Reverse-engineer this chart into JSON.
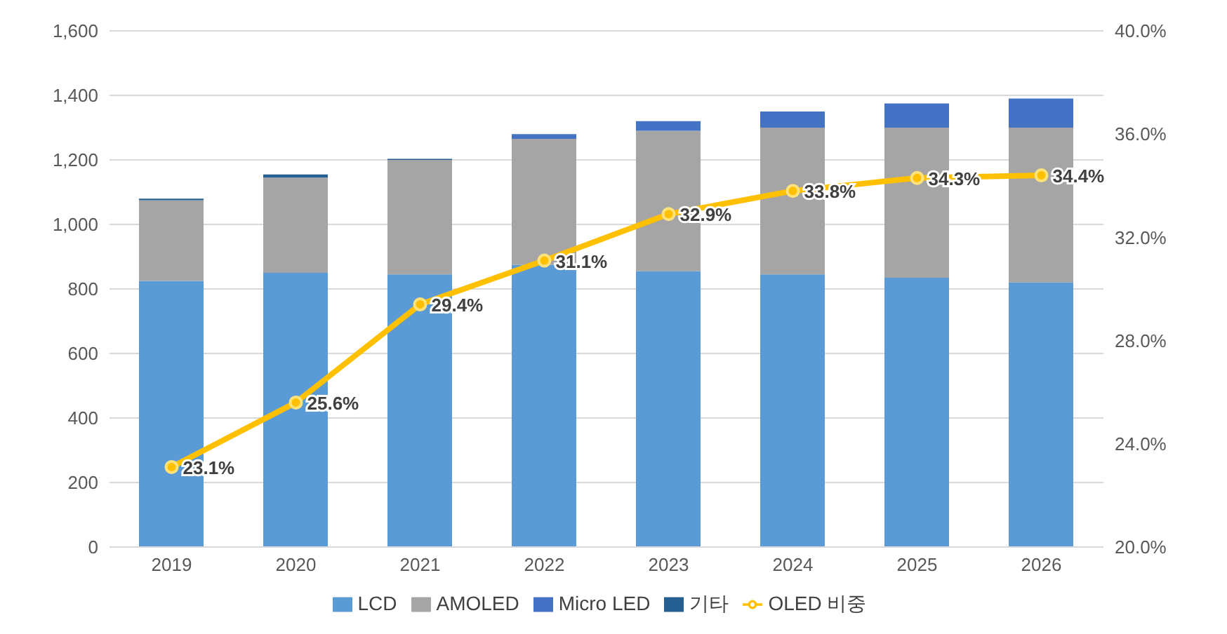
{
  "chart_data": {
    "type": "bar",
    "stacked": true,
    "categories": [
      "2019",
      "2020",
      "2021",
      "2022",
      "2023",
      "2024",
      "2025",
      "2026"
    ],
    "series": [
      {
        "name": "LCD",
        "color": "#5b9bd5",
        "values": [
          825,
          850,
          845,
          875,
          855,
          845,
          835,
          820
        ]
      },
      {
        "name": "AMOLED",
        "color": "#a5a5a5",
        "values": [
          250,
          295,
          355,
          390,
          435,
          455,
          465,
          480
        ]
      },
      {
        "name": "Micro LED",
        "color": "#4472c4",
        "values": [
          0,
          0,
          0,
          15,
          30,
          50,
          75,
          90
        ]
      },
      {
        "name": "기타",
        "color": "#255e91",
        "values": [
          5,
          10,
          3,
          0,
          0,
          0,
          0,
          0
        ]
      },
      {
        "name": "OLED 비중",
        "type": "line",
        "axis": "y2",
        "color": "#ffc000",
        "marker": "circle",
        "values": [
          23.1,
          25.6,
          29.4,
          31.1,
          32.9,
          33.8,
          34.3,
          34.4
        ],
        "value_labels": [
          "23.1%",
          "25.6%",
          "29.4%",
          "31.1%",
          "32.9%",
          "33.8%",
          "34.3%",
          "34.4%"
        ]
      }
    ],
    "ylim": [
      0,
      1600
    ],
    "yticks": [
      0,
      200,
      400,
      600,
      800,
      {
        "value": 1000,
        "label": "1,000"
      },
      {
        "value": 1200,
        "label": "1,200"
      },
      {
        "value": 1400,
        "label": "1,400"
      },
      {
        "value": 1600,
        "label": "1,600"
      }
    ],
    "y2lim": [
      20,
      40
    ],
    "y2ticks": [
      {
        "value": 20,
        "label": "20.0%"
      },
      {
        "value": 24,
        "label": "24.0%"
      },
      {
        "value": 28,
        "label": "28.0%"
      },
      {
        "value": 32,
        "label": "32.0%"
      },
      {
        "value": 36,
        "label": "36.0%"
      },
      {
        "value": 40,
        "label": "40.0%"
      }
    ],
    "grid": "y",
    "legend": "bottom"
  }
}
